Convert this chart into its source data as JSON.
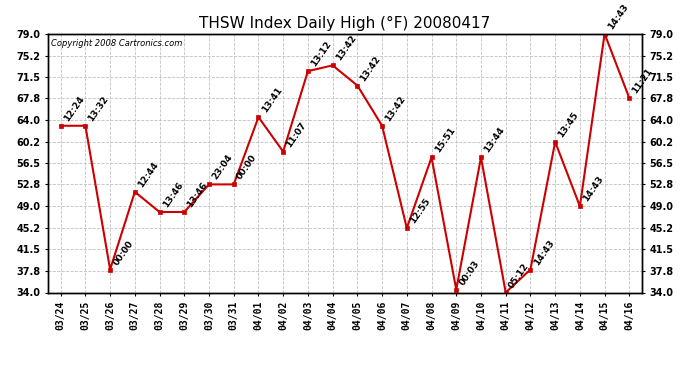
{
  "title": "THSW Index Daily High (°F) 20080417",
  "copyright": "Copyright 2008 Cartronics.com",
  "x_labels": [
    "03/24",
    "03/25",
    "03/26",
    "03/27",
    "03/28",
    "03/29",
    "03/30",
    "03/31",
    "04/01",
    "04/02",
    "04/03",
    "04/04",
    "04/05",
    "04/06",
    "04/07",
    "04/08",
    "04/09",
    "04/10",
    "04/11",
    "04/12",
    "04/13",
    "04/14",
    "04/15",
    "04/16"
  ],
  "y_values": [
    63.0,
    63.0,
    38.0,
    51.5,
    48.0,
    48.0,
    52.8,
    52.8,
    64.5,
    58.5,
    72.5,
    73.5,
    70.0,
    63.0,
    45.2,
    57.5,
    34.5,
    57.5,
    34.0,
    38.0,
    60.2,
    49.0,
    79.0,
    67.8
  ],
  "point_labels": [
    "12:24",
    "13:32",
    "00:00",
    "12:44",
    "13:46",
    "13:46",
    "23:04",
    "00:00",
    "13:41",
    "11:07",
    "13:12",
    "13:42",
    "13:42",
    "13:42",
    "12:55",
    "15:51",
    "00:03",
    "13:44",
    "05:12",
    "14:43",
    "13:45",
    "14:43",
    "14:43",
    "11:21"
  ],
  "ylim": [
    34.0,
    79.0
  ],
  "yticks": [
    34.0,
    37.8,
    41.5,
    45.2,
    49.0,
    52.8,
    56.5,
    60.2,
    64.0,
    67.8,
    71.5,
    75.2,
    79.0
  ],
  "ytick_labels": [
    "34.0",
    "37.8",
    "41.5",
    "45.2",
    "49.0",
    "52.8",
    "56.5",
    "60.2",
    "64.0",
    "67.8",
    "71.5",
    "75.2",
    "79.0"
  ],
  "line_color": "#cc0000",
  "marker_color": "#cc0000",
  "bg_color": "#ffffff",
  "grid_color": "#c0c0c0",
  "title_fontsize": 11,
  "label_fontsize": 7,
  "point_label_fontsize": 6.5
}
